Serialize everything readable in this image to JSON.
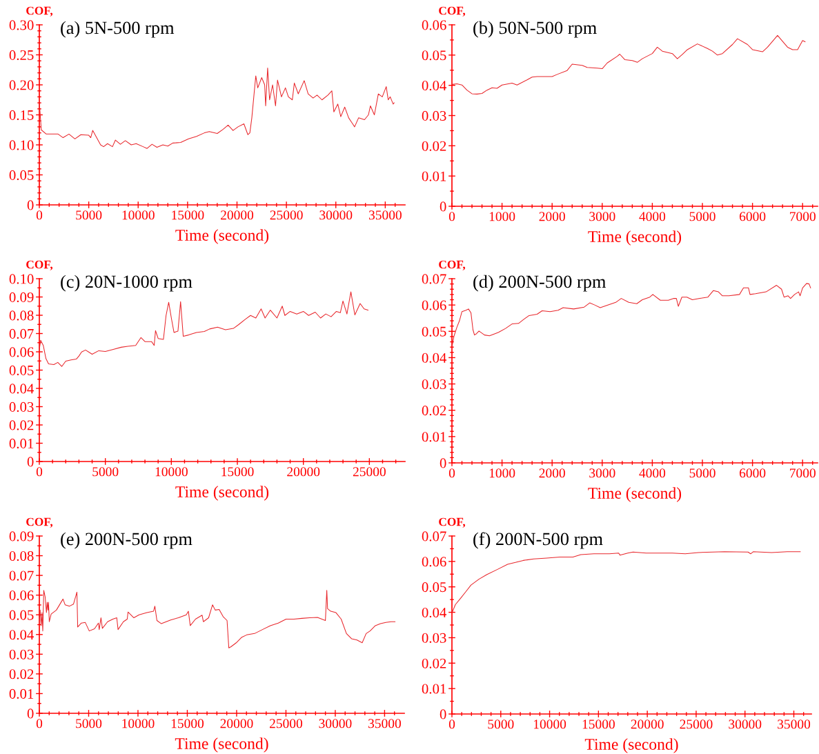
{
  "chart_data": [
    {
      "type": "line",
      "title": "(a) 5N-500 rpm",
      "xlabel": "Time (second)",
      "ylabel": "COF,",
      "x": [
        0,
        200,
        700,
        1900,
        2400,
        3000,
        3600,
        4200,
        5000,
        5200,
        5400,
        5800,
        6200,
        6500,
        6900,
        7400,
        7700,
        8200,
        8700,
        9300,
        9800,
        10500,
        10900,
        11400,
        11900,
        12500,
        13000,
        13500,
        14300,
        15100,
        15900,
        16700,
        17200,
        18000,
        18600,
        19100,
        19600,
        20100,
        20700,
        21100,
        21300,
        21500,
        21700,
        21900,
        22100,
        22500,
        22800,
        22900,
        23100,
        23300,
        23600,
        23900,
        24100,
        24500,
        24900,
        25200,
        25600,
        25800,
        26200,
        26800,
        27200,
        27700,
        28100,
        28600,
        29200,
        29600,
        29800,
        30200,
        30500,
        30900,
        31300,
        31700,
        31900,
        32300,
        32900,
        33300,
        33500,
        33900,
        34300,
        34700,
        35100,
        35300,
        35500,
        35800,
        35900
      ],
      "series": [
        {
          "color": "#e8262b",
          "values": [
            0.171,
            0.125,
            0.118,
            0.118,
            0.112,
            0.118,
            0.11,
            0.117,
            0.116,
            0.112,
            0.124,
            0.112,
            0.1,
            0.097,
            0.102,
            0.097,
            0.108,
            0.101,
            0.107,
            0.1,
            0.102,
            0.097,
            0.094,
            0.101,
            0.096,
            0.1,
            0.098,
            0.103,
            0.104,
            0.11,
            0.114,
            0.12,
            0.122,
            0.119,
            0.126,
            0.133,
            0.124,
            0.13,
            0.135,
            0.117,
            0.12,
            0.145,
            0.18,
            0.215,
            0.195,
            0.212,
            0.2,
            0.165,
            0.228,
            0.175,
            0.2,
            0.165,
            0.208,
            0.18,
            0.195,
            0.18,
            0.175,
            0.203,
            0.185,
            0.207,
            0.185,
            0.178,
            0.183,
            0.175,
            0.183,
            0.19,
            0.155,
            0.168,
            0.147,
            0.163,
            0.145,
            0.135,
            0.13,
            0.145,
            0.142,
            0.15,
            0.165,
            0.15,
            0.185,
            0.18,
            0.197,
            0.175,
            0.18,
            0.168,
            0.17
          ]
        }
      ],
      "xlim": [
        0,
        37000
      ],
      "ylim": [
        0,
        0.3
      ],
      "xticks": [
        0,
        5000,
        10000,
        15000,
        20000,
        25000,
        30000,
        35000,
        {
          "value": 1000,
          "label": null
        },
        {
          "value": 2000,
          "label": null
        },
        {
          "value": 3000,
          "label": null
        },
        {
          "value": 4000,
          "label": null
        },
        {
          "value": 6000,
          "label": null
        },
        {
          "value": 7000,
          "label": null
        },
        {
          "value": 8000,
          "label": null
        },
        {
          "value": 9000,
          "label": null
        },
        {
          "value": 11000,
          "label": null
        },
        {
          "value": 12000,
          "label": null
        },
        {
          "value": 13000,
          "label": null
        },
        {
          "value": 14000,
          "label": null
        },
        {
          "value": 16000,
          "label": null
        },
        {
          "value": 17000,
          "label": null
        },
        {
          "value": 18000,
          "label": null
        },
        {
          "value": 19000,
          "label": null
        },
        {
          "value": 21000,
          "label": null
        },
        {
          "value": 22000,
          "label": null
        },
        {
          "value": 23000,
          "label": null
        },
        {
          "value": 24000,
          "label": null
        },
        {
          "value": 26000,
          "label": null
        },
        {
          "value": 27000,
          "label": null
        },
        {
          "value": 28000,
          "label": null
        },
        {
          "value": 29000,
          "label": null
        },
        {
          "value": 31000,
          "label": null
        },
        {
          "value": 32000,
          "label": null
        },
        {
          "value": 33000,
          "label": null
        },
        {
          "value": 34000,
          "label": null
        },
        {
          "value": 36000,
          "label": null
        }
      ],
      "yticks": [
        0,
        0.05,
        {
          "value": 0.1,
          "label": "0.10"
        },
        0.15,
        {
          "value": 0.2,
          "label": "0.20"
        },
        0.25,
        {
          "value": 0.3,
          "label": "0.30"
        },
        {
          "value": 0.01,
          "label": null
        },
        {
          "value": 0.02,
          "label": null
        },
        {
          "value": 0.03,
          "label": null
        },
        {
          "value": 0.04,
          "label": null
        },
        {
          "value": 0.06,
          "label": null
        },
        {
          "value": 0.07,
          "label": null
        },
        {
          "value": 0.08,
          "label": null
        },
        {
          "value": 0.09,
          "label": null
        },
        {
          "value": 0.11,
          "label": null
        },
        {
          "value": 0.12,
          "label": null
        },
        {
          "value": 0.13,
          "label": null
        },
        {
          "value": 0.14,
          "label": null
        },
        {
          "value": 0.16,
          "label": null
        },
        {
          "value": 0.17,
          "label": null
        },
        {
          "value": 0.18,
          "label": null
        },
        {
          "value": 0.19,
          "label": null
        },
        {
          "value": 0.21,
          "label": null
        },
        {
          "value": 0.22,
          "label": null
        },
        {
          "value": 0.23,
          "label": null
        },
        {
          "value": 0.24,
          "label": null
        },
        {
          "value": 0.26,
          "label": null
        },
        {
          "value": 0.27,
          "label": null
        },
        {
          "value": 0.28,
          "label": null
        },
        {
          "value": 0.29,
          "label": null
        }
      ]
    },
    {
      "type": "line",
      "title": "(b) 50N-500 rpm",
      "xlabel": "Time (second)",
      "ylabel": "COF,",
      "x": [
        0,
        100,
        200,
        300,
        400,
        500,
        600,
        700,
        800,
        900,
        1000,
        1200,
        1300,
        1500,
        1600,
        1700,
        1900,
        2000,
        2100,
        2300,
        2400,
        2600,
        2700,
        2900,
        3000,
        3100,
        3300,
        3350,
        3450,
        3600,
        3700,
        3800,
        4000,
        4100,
        4200,
        4400,
        4500,
        4600,
        4700,
        4900,
        5100,
        5200,
        5300,
        5400,
        5600,
        5700,
        5900,
        6000,
        6200,
        6300,
        6500,
        6700,
        6800,
        6900,
        7000,
        7050
      ],
      "series": [
        {
          "color": "#e8262b",
          "values": [
            0.0403,
            0.0405,
            0.0401,
            0.0384,
            0.0372,
            0.0371,
            0.0373,
            0.0384,
            0.0392,
            0.039,
            0.0401,
            0.0407,
            0.0401,
            0.0418,
            0.0427,
            0.0429,
            0.0429,
            0.0429,
            0.0436,
            0.0449,
            0.047,
            0.0466,
            0.0459,
            0.0457,
            0.0455,
            0.0474,
            0.0496,
            0.0503,
            0.0485,
            0.0482,
            0.0476,
            0.0488,
            0.0505,
            0.0526,
            0.0513,
            0.0505,
            0.0488,
            0.0502,
            0.0518,
            0.0537,
            0.0522,
            0.0513,
            0.05,
            0.0505,
            0.0535,
            0.0554,
            0.0535,
            0.0518,
            0.0511,
            0.0526,
            0.0565,
            0.0526,
            0.0518,
            0.0518,
            0.0548,
            0.0544
          ]
        }
      ],
      "xlim": [
        0,
        7300
      ],
      "ylim": [
        0,
        0.06
      ],
      "xticks": [
        0,
        1000,
        2000,
        3000,
        4000,
        5000,
        6000,
        7000,
        {
          "value": 200,
          "label": null
        },
        {
          "value": 400,
          "label": null
        },
        {
          "value": 600,
          "label": null
        },
        {
          "value": 800,
          "label": null
        },
        {
          "value": 1200,
          "label": null
        },
        {
          "value": 1400,
          "label": null
        },
        {
          "value": 1600,
          "label": null
        },
        {
          "value": 1800,
          "label": null
        },
        {
          "value": 2200,
          "label": null
        },
        {
          "value": 2400,
          "label": null
        },
        {
          "value": 2600,
          "label": null
        },
        {
          "value": 2800,
          "label": null
        },
        {
          "value": 3200,
          "label": null
        },
        {
          "value": 3400,
          "label": null
        },
        {
          "value": 3600,
          "label": null
        },
        {
          "value": 3800,
          "label": null
        },
        {
          "value": 4200,
          "label": null
        },
        {
          "value": 4400,
          "label": null
        },
        {
          "value": 4600,
          "label": null
        },
        {
          "value": 4800,
          "label": null
        },
        {
          "value": 5200,
          "label": null
        },
        {
          "value": 5400,
          "label": null
        },
        {
          "value": 5600,
          "label": null
        },
        {
          "value": 5800,
          "label": null
        },
        {
          "value": 6200,
          "label": null
        },
        {
          "value": 6400,
          "label": null
        },
        {
          "value": 6600,
          "label": null
        },
        {
          "value": 6800,
          "label": null
        },
        {
          "value": 7200,
          "label": null
        }
      ],
      "yticks": [
        0,
        0.01,
        0.02,
        0.03,
        0.04,
        0.05,
        0.06,
        {
          "value": 0.005,
          "label": null
        },
        {
          "value": 0.015,
          "label": null
        },
        {
          "value": 0.025,
          "label": null
        },
        {
          "value": 0.035,
          "label": null
        },
        {
          "value": 0.045,
          "label": null
        },
        {
          "value": 0.055,
          "label": null
        }
      ]
    },
    {
      "type": "line",
      "title": "(c) 20N-1000 rpm",
      "xlabel": "Time (second)",
      "ylabel": "COF,",
      "x": [
        0,
        100,
        300,
        500,
        700,
        1100,
        1400,
        1700,
        2000,
        2400,
        2800,
        3000,
        3200,
        3500,
        4000,
        4500,
        5000,
        5600,
        6200,
        6700,
        7300,
        7700,
        8000,
        8500,
        8700,
        8800,
        9000,
        9400,
        9600,
        9800,
        10000,
        10200,
        10500,
        10700,
        10900,
        11300,
        11900,
        12500,
        12900,
        13500,
        14100,
        14700,
        15100,
        15600,
        16000,
        16400,
        16800,
        17100,
        17500,
        18000,
        18400,
        18600,
        19000,
        19500,
        20000,
        20400,
        20900,
        21300,
        21700,
        22100,
        22500,
        22800,
        23000,
        23300,
        23600,
        23900,
        24300,
        24600,
        24900
      ],
      "series": [
        {
          "color": "#e8262b",
          "values": [
            0.0613,
            0.0663,
            0.0635,
            0.0563,
            0.0534,
            0.053,
            0.0542,
            0.052,
            0.0549,
            0.0556,
            0.056,
            0.0577,
            0.0599,
            0.061,
            0.0587,
            0.0606,
            0.0602,
            0.0613,
            0.0625,
            0.063,
            0.0635,
            0.0678,
            0.0656,
            0.0656,
            0.0635,
            0.0716,
            0.0673,
            0.0668,
            0.0799,
            0.0871,
            0.0785,
            0.0706,
            0.0713,
            0.0874,
            0.0685,
            0.0692,
            0.0706,
            0.0711,
            0.0725,
            0.0735,
            0.0721,
            0.0728,
            0.0749,
            0.0778,
            0.0799,
            0.0785,
            0.0835,
            0.0785,
            0.0828,
            0.0785,
            0.085,
            0.0799,
            0.0821,
            0.0807,
            0.0821,
            0.0799,
            0.0817,
            0.0785,
            0.0807,
            0.0792,
            0.0821,
            0.0814,
            0.0878,
            0.0807,
            0.0928,
            0.0802,
            0.0864,
            0.0835,
            0.0828
          ]
        }
      ],
      "xlim": [
        0,
        27700
      ],
      "ylim": [
        0,
        0.1
      ],
      "xticks": [
        0,
        5000,
        10000,
        15000,
        20000,
        25000,
        {
          "value": 1000,
          "label": null
        },
        {
          "value": 2000,
          "label": null
        },
        {
          "value": 3000,
          "label": null
        },
        {
          "value": 4000,
          "label": null
        },
        {
          "value": 6000,
          "label": null
        },
        {
          "value": 7000,
          "label": null
        },
        {
          "value": 8000,
          "label": null
        },
        {
          "value": 9000,
          "label": null
        },
        {
          "value": 11000,
          "label": null
        },
        {
          "value": 12000,
          "label": null
        },
        {
          "value": 13000,
          "label": null
        },
        {
          "value": 14000,
          "label": null
        },
        {
          "value": 16000,
          "label": null
        },
        {
          "value": 17000,
          "label": null
        },
        {
          "value": 18000,
          "label": null
        },
        {
          "value": 19000,
          "label": null
        },
        {
          "value": 21000,
          "label": null
        },
        {
          "value": 22000,
          "label": null
        },
        {
          "value": 23000,
          "label": null
        },
        {
          "value": 24000,
          "label": null
        },
        {
          "value": 26000,
          "label": null
        },
        {
          "value": 27000,
          "label": null
        }
      ],
      "yticks": [
        0,
        0.01,
        0.02,
        0.03,
        0.04,
        0.05,
        0.06,
        0.07,
        0.08,
        0.09,
        {
          "value": 0.1,
          "label": "0.10"
        },
        {
          "value": 0.005,
          "label": null
        },
        {
          "value": 0.015,
          "label": null
        },
        {
          "value": 0.025,
          "label": null
        },
        {
          "value": 0.035,
          "label": null
        },
        {
          "value": 0.045,
          "label": null
        },
        {
          "value": 0.055,
          "label": null
        },
        {
          "value": 0.065,
          "label": null
        },
        {
          "value": 0.075,
          "label": null
        },
        {
          "value": 0.085,
          "label": null
        },
        {
          "value": 0.095,
          "label": null
        }
      ]
    },
    {
      "type": "line",
      "title": "(d) 200N-500 rpm",
      "xlabel": "Time (second)",
      "ylabel": "COF,",
      "x": [
        0,
        40,
        100,
        150,
        200,
        280,
        330,
        380,
        420,
        450,
        490,
        540,
        650,
        750,
        860,
        930,
        1070,
        1200,
        1330,
        1430,
        1540,
        1700,
        1800,
        1960,
        2120,
        2220,
        2430,
        2640,
        2750,
        2850,
        2960,
        3110,
        3270,
        3380,
        3530,
        3690,
        3800,
        3950,
        4010,
        4160,
        4320,
        4430,
        4480,
        4520,
        4590,
        4690,
        4800,
        4950,
        5110,
        5220,
        5320,
        5400,
        5530,
        5740,
        5820,
        5920,
        5950,
        6060,
        6270,
        6480,
        6580,
        6630,
        6710,
        6760,
        6840,
        6920,
        6950,
        7000,
        7080,
        7130,
        7160
      ],
      "series": [
        {
          "color": "#e8262b",
          "values": [
            0.0441,
            0.0481,
            0.0516,
            0.054,
            0.0575,
            0.058,
            0.0585,
            0.057,
            0.0506,
            0.0486,
            0.0491,
            0.0501,
            0.0486,
            0.0483,
            0.0491,
            0.0496,
            0.0511,
            0.0528,
            0.053,
            0.0545,
            0.056,
            0.0565,
            0.0578,
            0.0575,
            0.058,
            0.059,
            0.0585,
            0.0592,
            0.0608,
            0.06,
            0.059,
            0.06,
            0.061,
            0.0625,
            0.061,
            0.0605,
            0.062,
            0.063,
            0.064,
            0.0618,
            0.0618,
            0.0625,
            0.0625,
            0.0595,
            0.063,
            0.063,
            0.062,
            0.0625,
            0.063,
            0.0655,
            0.065,
            0.0635,
            0.0635,
            0.064,
            0.0665,
            0.0665,
            0.064,
            0.0643,
            0.065,
            0.0675,
            0.066,
            0.063,
            0.0635,
            0.0625,
            0.064,
            0.065,
            0.0635,
            0.0665,
            0.0682,
            0.068,
            0.0665
          ]
        }
      ],
      "xlim": [
        0,
        7300
      ],
      "ylim": [
        0,
        0.07
      ],
      "xticks": [
        0,
        1000,
        2000,
        3000,
        4000,
        5000,
        6000,
        7000,
        {
          "value": 200,
          "label": null
        },
        {
          "value": 400,
          "label": null
        },
        {
          "value": 600,
          "label": null
        },
        {
          "value": 800,
          "label": null
        },
        {
          "value": 1200,
          "label": null
        },
        {
          "value": 1400,
          "label": null
        },
        {
          "value": 1600,
          "label": null
        },
        {
          "value": 1800,
          "label": null
        },
        {
          "value": 2200,
          "label": null
        },
        {
          "value": 2400,
          "label": null
        },
        {
          "value": 2600,
          "label": null
        },
        {
          "value": 2800,
          "label": null
        },
        {
          "value": 3200,
          "label": null
        },
        {
          "value": 3400,
          "label": null
        },
        {
          "value": 3600,
          "label": null
        },
        {
          "value": 3800,
          "label": null
        },
        {
          "value": 4200,
          "label": null
        },
        {
          "value": 4400,
          "label": null
        },
        {
          "value": 4600,
          "label": null
        },
        {
          "value": 4800,
          "label": null
        },
        {
          "value": 5200,
          "label": null
        },
        {
          "value": 5400,
          "label": null
        },
        {
          "value": 5600,
          "label": null
        },
        {
          "value": 5800,
          "label": null
        },
        {
          "value": 6200,
          "label": null
        },
        {
          "value": 6400,
          "label": null
        },
        {
          "value": 6600,
          "label": null
        },
        {
          "value": 6800,
          "label": null
        },
        {
          "value": 7200,
          "label": null
        }
      ],
      "yticks": [
        0,
        0.01,
        0.02,
        0.03,
        0.04,
        0.05,
        0.06,
        0.07,
        {
          "value": 0.002,
          "label": null
        },
        {
          "value": 0.004,
          "label": null
        },
        {
          "value": 0.006,
          "label": null
        },
        {
          "value": 0.008,
          "label": null
        },
        {
          "value": 0.012,
          "label": null
        },
        {
          "value": 0.014,
          "label": null
        },
        {
          "value": 0.016,
          "label": null
        },
        {
          "value": 0.018,
          "label": null
        },
        {
          "value": 0.022,
          "label": null
        },
        {
          "value": 0.024,
          "label": null
        },
        {
          "value": 0.026,
          "label": null
        },
        {
          "value": 0.028,
          "label": null
        },
        {
          "value": 0.032,
          "label": null
        },
        {
          "value": 0.034,
          "label": null
        },
        {
          "value": 0.036,
          "label": null
        },
        {
          "value": 0.038,
          "label": null
        },
        {
          "value": 0.042,
          "label": null
        },
        {
          "value": 0.044,
          "label": null
        },
        {
          "value": 0.046,
          "label": null
        },
        {
          "value": 0.048,
          "label": null
        },
        {
          "value": 0.052,
          "label": null
        },
        {
          "value": 0.054,
          "label": null
        },
        {
          "value": 0.056,
          "label": null
        },
        {
          "value": 0.058,
          "label": null
        },
        {
          "value": 0.062,
          "label": null
        },
        {
          "value": 0.064,
          "label": null
        },
        {
          "value": 0.066,
          "label": null
        },
        {
          "value": 0.068,
          "label": null
        }
      ]
    },
    {
      "type": "line",
      "title": "(e) 200N-500 rpm",
      "xlabel": "Time (second)",
      "ylabel": "COF,",
      "x": [
        0,
        80,
        190,
        270,
        350,
        450,
        590,
        720,
        800,
        880,
        930,
        1010,
        1200,
        1730,
        2400,
        2610,
        3060,
        3460,
        3810,
        3890,
        4260,
        4660,
        5060,
        5590,
        5990,
        6070,
        6250,
        6390,
        6920,
        7450,
        7850,
        7980,
        8520,
        8910,
        8990,
        9580,
        10110,
        10910,
        11580,
        11710,
        11920,
        12370,
        13310,
        14100,
        14900,
        15110,
        15300,
        15830,
        16500,
        16630,
        17160,
        17560,
        17830,
        18230,
        18630,
        19030,
        19210,
        19430,
        19960,
        20490,
        21020,
        21820,
        22620,
        23420,
        24220,
        25010,
        25810,
        26610,
        27410,
        28200,
        29000,
        29140,
        29220,
        29540,
        30070,
        30600,
        31130,
        31670,
        32200,
        32730,
        33130,
        33530,
        34060,
        34590,
        35130,
        35660,
        36060
      ],
      "series": [
        {
          "color": "#e8262b",
          "values": [
            0.0458,
            0.0524,
            0.0445,
            0.0511,
            0.0418,
            0.0624,
            0.0591,
            0.0511,
            0.0564,
            0.0524,
            0.0564,
            0.0465,
            0.0504,
            0.0524,
            0.058,
            0.0551,
            0.0544,
            0.0554,
            0.0615,
            0.0438,
            0.0458,
            0.0461,
            0.0418,
            0.0429,
            0.0458,
            0.0425,
            0.0485,
            0.0431,
            0.0465,
            0.0478,
            0.0485,
            0.0425,
            0.0465,
            0.0478,
            0.0514,
            0.0485,
            0.05,
            0.0511,
            0.0518,
            0.0544,
            0.0471,
            0.0455,
            0.0474,
            0.0485,
            0.05,
            0.0518,
            0.0445,
            0.0478,
            0.0498,
            0.0465,
            0.0485,
            0.0551,
            0.0524,
            0.0527,
            0.0491,
            0.0471,
            0.0332,
            0.0338,
            0.0358,
            0.0385,
            0.0398,
            0.0405,
            0.0425,
            0.0445,
            0.0458,
            0.0478,
            0.0478,
            0.0482,
            0.0485,
            0.0487,
            0.0471,
            0.0624,
            0.0531,
            0.0518,
            0.0511,
            0.0478,
            0.0405,
            0.0378,
            0.0372,
            0.0358,
            0.0405,
            0.0418,
            0.0445,
            0.0455,
            0.0461,
            0.0465,
            0.0465
          ]
        }
      ],
      "xlim": [
        0,
        37000
      ],
      "ylim": [
        0,
        0.09
      ],
      "xticks": [
        0,
        5000,
        10000,
        15000,
        20000,
        25000,
        30000,
        35000,
        {
          "value": 1000,
          "label": null
        },
        {
          "value": 2000,
          "label": null
        },
        {
          "value": 3000,
          "label": null
        },
        {
          "value": 4000,
          "label": null
        },
        {
          "value": 6000,
          "label": null
        },
        {
          "value": 7000,
          "label": null
        },
        {
          "value": 8000,
          "label": null
        },
        {
          "value": 9000,
          "label": null
        },
        {
          "value": 11000,
          "label": null
        },
        {
          "value": 12000,
          "label": null
        },
        {
          "value": 13000,
          "label": null
        },
        {
          "value": 14000,
          "label": null
        },
        {
          "value": 16000,
          "label": null
        },
        {
          "value": 17000,
          "label": null
        },
        {
          "value": 18000,
          "label": null
        },
        {
          "value": 19000,
          "label": null
        },
        {
          "value": 21000,
          "label": null
        },
        {
          "value": 22000,
          "label": null
        },
        {
          "value": 23000,
          "label": null
        },
        {
          "value": 24000,
          "label": null
        },
        {
          "value": 26000,
          "label": null
        },
        {
          "value": 27000,
          "label": null
        },
        {
          "value": 28000,
          "label": null
        },
        {
          "value": 29000,
          "label": null
        },
        {
          "value": 31000,
          "label": null
        },
        {
          "value": 32000,
          "label": null
        },
        {
          "value": 33000,
          "label": null
        },
        {
          "value": 34000,
          "label": null
        },
        {
          "value": 36000,
          "label": null
        }
      ],
      "yticks": [
        0,
        0.01,
        0.02,
        0.03,
        0.04,
        0.05,
        0.06,
        0.07,
        0.08,
        0.09,
        {
          "value": 0.005,
          "label": null
        },
        {
          "value": 0.015,
          "label": null
        },
        {
          "value": 0.025,
          "label": null
        },
        {
          "value": 0.035,
          "label": null
        },
        {
          "value": 0.045,
          "label": null
        },
        {
          "value": 0.055,
          "label": null
        },
        {
          "value": 0.065,
          "label": null
        },
        {
          "value": 0.075,
          "label": null
        },
        {
          "value": 0.085,
          "label": null
        }
      ]
    },
    {
      "type": "line",
      "title": "(f) 200N-500 rpm",
      "xlabel": "Time (second)",
      "ylabel": "COF,",
      "x": [
        0,
        350,
        880,
        1420,
        1950,
        2760,
        3560,
        4630,
        5700,
        6500,
        7300,
        8370,
        9710,
        11050,
        12390,
        13190,
        14530,
        16130,
        17070,
        17200,
        18000,
        18540,
        19880,
        22550,
        23890,
        25220,
        27900,
        30310,
        30580,
        30840,
        32720,
        34320,
        35660
      ],
      "series": [
        {
          "color": "#e8262b",
          "values": [
            0.0397,
            0.043,
            0.0455,
            0.0481,
            0.0507,
            0.053,
            0.0548,
            0.0568,
            0.0589,
            0.0596,
            0.0604,
            0.061,
            0.0613,
            0.0617,
            0.0617,
            0.0627,
            0.063,
            0.063,
            0.0633,
            0.0625,
            0.0633,
            0.0637,
            0.0633,
            0.0633,
            0.063,
            0.0635,
            0.0638,
            0.0637,
            0.063,
            0.0638,
            0.0635,
            0.0638,
            0.0638
          ]
        }
      ],
      "xlim": [
        0,
        36800
      ],
      "ylim": [
        0,
        0.07
      ],
      "xticks": [
        0,
        5000,
        10000,
        15000,
        20000,
        25000,
        30000,
        35000,
        {
          "value": 1000,
          "label": null
        },
        {
          "value": 2000,
          "label": null
        },
        {
          "value": 3000,
          "label": null
        },
        {
          "value": 4000,
          "label": null
        },
        {
          "value": 6000,
          "label": null
        },
        {
          "value": 7000,
          "label": null
        },
        {
          "value": 8000,
          "label": null
        },
        {
          "value": 9000,
          "label": null
        },
        {
          "value": 11000,
          "label": null
        },
        {
          "value": 12000,
          "label": null
        },
        {
          "value": 13000,
          "label": null
        },
        {
          "value": 14000,
          "label": null
        },
        {
          "value": 16000,
          "label": null
        },
        {
          "value": 17000,
          "label": null
        },
        {
          "value": 18000,
          "label": null
        },
        {
          "value": 19000,
          "label": null
        },
        {
          "value": 21000,
          "label": null
        },
        {
          "value": 22000,
          "label": null
        },
        {
          "value": 23000,
          "label": null
        },
        {
          "value": 24000,
          "label": null
        },
        {
          "value": 26000,
          "label": null
        },
        {
          "value": 27000,
          "label": null
        },
        {
          "value": 28000,
          "label": null
        },
        {
          "value": 29000,
          "label": null
        },
        {
          "value": 31000,
          "label": null
        },
        {
          "value": 32000,
          "label": null
        },
        {
          "value": 33000,
          "label": null
        },
        {
          "value": 34000,
          "label": null
        },
        {
          "value": 36000,
          "label": null
        }
      ],
      "yticks": [
        0,
        0.01,
        0.02,
        0.03,
        0.04,
        0.05,
        0.06,
        0.07,
        {
          "value": 0.005,
          "label": null
        },
        {
          "value": 0.015,
          "label": null
        },
        {
          "value": 0.025,
          "label": null
        },
        {
          "value": 0.035,
          "label": null
        },
        {
          "value": 0.045,
          "label": null
        },
        {
          "value": 0.055,
          "label": null
        },
        {
          "value": 0.065,
          "label": null
        }
      ]
    }
  ]
}
